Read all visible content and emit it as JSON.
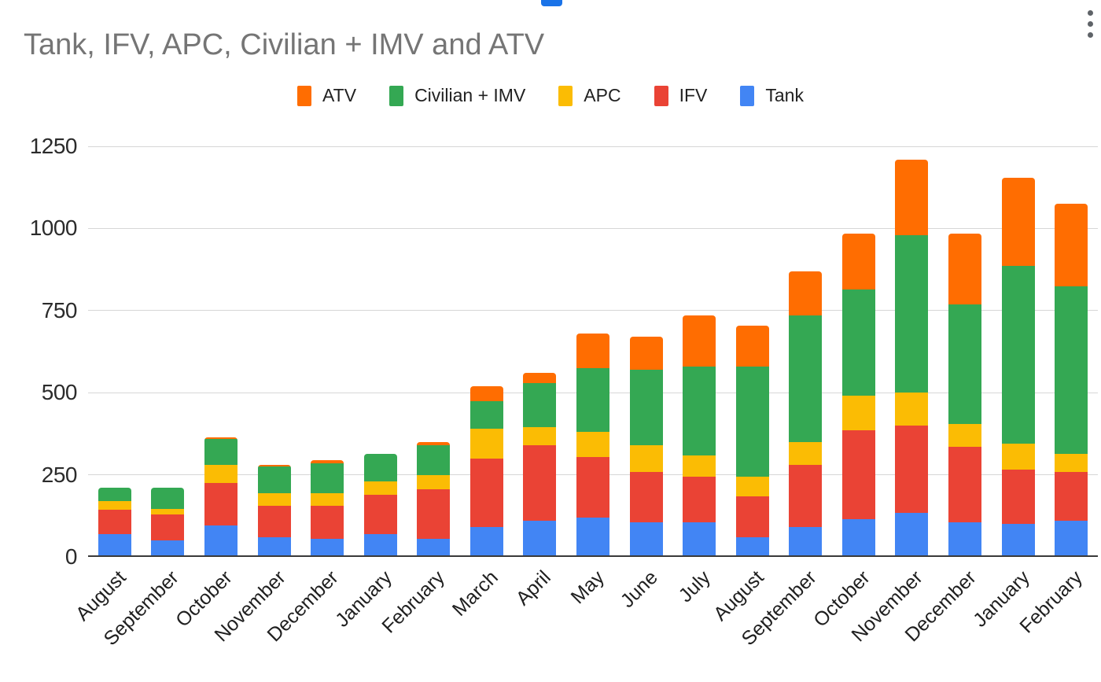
{
  "page": {
    "top_fragment_color": "#1a73e8",
    "menu_icon": "kebab-menu"
  },
  "chart_data": {
    "type": "bar",
    "stacked": true,
    "title": "Tank, IFV, APC, Civilian + IMV and ATV",
    "title_color": "#757575",
    "legend_position": "top",
    "grid": true,
    "xlabel": "",
    "ylabel": "",
    "ylim": [
      0,
      1250
    ],
    "y_ticks": [
      0,
      250,
      500,
      750,
      1000,
      1250
    ],
    "grid_color": "#d6d6d6",
    "baseline_color": "#3a3a3a",
    "categories": [
      "August",
      "September",
      "October",
      "November",
      "December",
      "January",
      "February",
      "March",
      "April",
      "May",
      "June",
      "July",
      "August",
      "September",
      "October",
      "November",
      "December",
      "January",
      "February"
    ],
    "series": [
      {
        "name": "Tank",
        "color": "#4285F4",
        "values": [
          70,
          50,
          95,
          60,
          55,
          70,
          55,
          90,
          110,
          120,
          105,
          105,
          60,
          90,
          115,
          135,
          105,
          100,
          110
        ]
      },
      {
        "name": "IFV",
        "color": "#EA4335",
        "values": [
          75,
          80,
          130,
          95,
          100,
          120,
          150,
          210,
          230,
          185,
          155,
          140,
          125,
          190,
          270,
          265,
          230,
          165,
          150
        ]
      },
      {
        "name": "APC",
        "color": "#FBBC04",
        "values": [
          25,
          15,
          55,
          40,
          40,
          40,
          45,
          90,
          55,
          75,
          80,
          65,
          60,
          70,
          105,
          100,
          70,
          80,
          55
        ]
      },
      {
        "name": "Civilian + IMV",
        "color": "#34A853",
        "values": [
          40,
          65,
          80,
          80,
          90,
          85,
          90,
          85,
          135,
          195,
          230,
          270,
          335,
          385,
          325,
          480,
          365,
          540,
          510
        ]
      },
      {
        "name": "ATV",
        "color": "#FF6D01",
        "values": [
          0,
          0,
          5,
          5,
          10,
          0,
          10,
          45,
          30,
          105,
          100,
          155,
          125,
          135,
          170,
          230,
          215,
          270,
          250
        ]
      }
    ],
    "legend_order": [
      "ATV",
      "Civilian + IMV",
      "APC",
      "IFV",
      "Tank"
    ]
  }
}
